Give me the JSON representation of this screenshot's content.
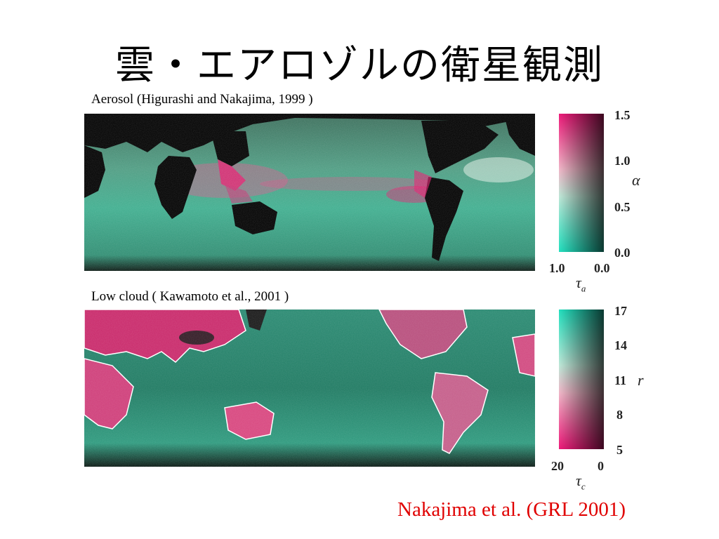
{
  "title": "雲・エアロゾルの衛星観測",
  "aerosol_caption": "Aerosol (Higurashi and Nakajima, 1999 )",
  "cloud_caption": "Low cloud ( Kawamoto et al., 2001 )",
  "aerosol_colorbar": {
    "y_ticks": [
      "1.5",
      "1.0",
      "0.5",
      "0.0"
    ],
    "y_symbol": "α",
    "x_ticks": [
      "1.0",
      "0.0"
    ],
    "x_symbol": "τ",
    "x_subscript": "a"
  },
  "cloud_colorbar": {
    "y_ticks": [
      "17",
      "14",
      "11",
      "8",
      "5"
    ],
    "y_symbol": "r",
    "x_ticks": [
      "20",
      "0"
    ],
    "x_symbol": "τ",
    "x_subscript": "c"
  },
  "citation": "Nakajima et al. (GRL 2001)",
  "colors": {
    "pink": "#e8186e",
    "teal": "#2ad6b4",
    "dark_green": "#0b3a2c",
    "citation_red": "#e00000"
  }
}
